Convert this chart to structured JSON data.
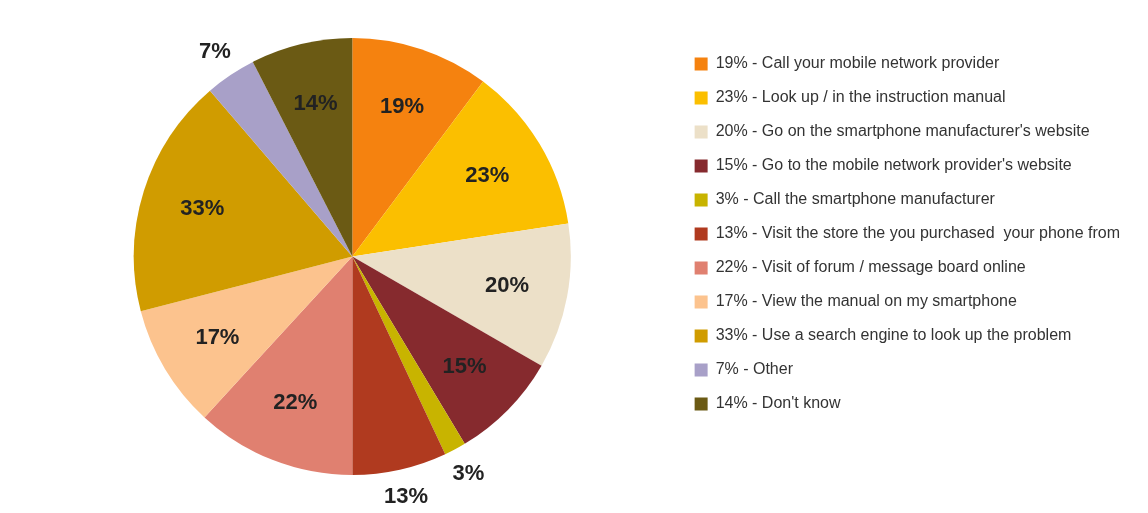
{
  "chart_data": {
    "type": "pie",
    "categories": [
      "19% - Call your mobile network provider",
      "23% - Look up / in the instruction manual",
      "20% - Go on the smartphone manufacturer's website",
      "15% - Go to the mobile network provider's website",
      "3% - Call the smartphone manufacturer",
      "13% - Visit the store the you purchased  your phone from",
      "22% - Visit of forum / message board online",
      "17% - View the manual on my smartphone",
      "33% - Use a search engine to look up the problem",
      "7% - Other",
      "14% - Don't know"
    ],
    "values": [
      19,
      23,
      20,
      15,
      3,
      13,
      22,
      17,
      33,
      7,
      14
    ],
    "value_labels": [
      "19%",
      "23%",
      "20%",
      "15%",
      "3%",
      "13%",
      "22%",
      "17%",
      "33%",
      "7%",
      "14%"
    ],
    "colors": [
      "#f5820f",
      "#fbbf00",
      "#ece0c8",
      "#862a2e",
      "#c8b400",
      "#b03a1f",
      "#e08070",
      "#fcc38e",
      "#d09c00",
      "#a8a0c8",
      "#6b5a14"
    ],
    "legend": "right"
  }
}
